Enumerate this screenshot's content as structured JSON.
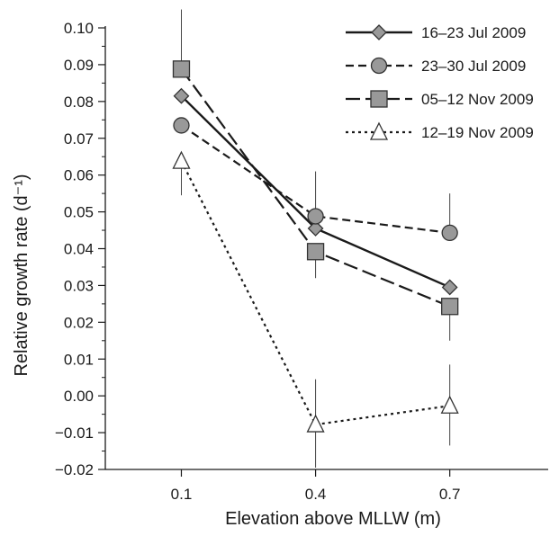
{
  "chart_data": {
    "type": "line",
    "title": "",
    "xlabel": "Elevation above MLLW (m)",
    "ylabel": "Relative growth rate (d⁻¹)",
    "x": [
      0.1,
      0.4,
      0.7
    ],
    "x_tick_labels": [
      "0.1",
      "0.4",
      "0.7"
    ],
    "xlim": [
      -0.07,
      0.92
    ],
    "ylim": [
      -0.02,
      0.1
    ],
    "y_ticks": [
      -0.02,
      -0.01,
      0.0,
      0.01,
      0.02,
      0.03,
      0.04,
      0.05,
      0.06,
      0.07,
      0.08,
      0.09,
      0.1
    ],
    "y_tick_labels": [
      "−0.02",
      "−0.01",
      "0.00",
      "0.01",
      "0.02",
      "0.03",
      "0.04",
      "0.05",
      "0.06",
      "0.07",
      "0.08",
      "0.09",
      "0.10"
    ],
    "grid": false,
    "legend_position": "top-right",
    "series": [
      {
        "name": "16–23 Jul 2009",
        "values": [
          0.0815,
          0.0455,
          0.0295
        ],
        "marker": "diamond",
        "dash": "solid",
        "fill": "#999999",
        "err_low": [
          null,
          null,
          null
        ],
        "err_high": [
          null,
          null,
          null
        ]
      },
      {
        "name": "23–30 Jul 2009",
        "values": [
          0.0735,
          0.0488,
          0.0443
        ],
        "marker": "circle",
        "dash": "dashed",
        "fill": "#999999",
        "err_low": [
          null,
          null,
          null
        ],
        "err_high": [
          null,
          0.061,
          0.055
        ]
      },
      {
        "name": "05–12 Nov 2009",
        "values": [
          0.0888,
          0.0392,
          0.0243
        ],
        "marker": "square",
        "dash": "longdash",
        "fill": "#999999",
        "err_low": [
          null,
          0.032,
          0.015
        ],
        "err_high": [
          0.105,
          null,
          null
        ]
      },
      {
        "name": "12–19 Nov 2009",
        "values": [
          0.0638,
          -0.0078,
          -0.0027
        ],
        "marker": "triangle",
        "dash": "dotted",
        "fill": "#ffffff",
        "err_low": [
          0.0545,
          -0.0195,
          -0.0135
        ],
        "err_high": [
          null,
          0.0045,
          0.0085
        ]
      }
    ]
  }
}
